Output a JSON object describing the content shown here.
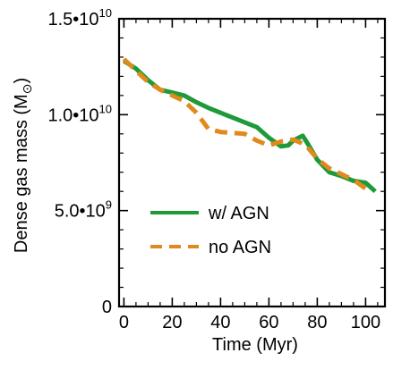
{
  "chart_data": {
    "type": "line",
    "xlabel": "Time (Myr)",
    "ylabel": "Dense gas mass (M",
    "ylabel_sub_symbol": "⊙",
    "ylabel_close": ")",
    "xlim": [
      -2,
      108
    ],
    "ylim": [
      0,
      15000000000
    ],
    "x_ticks": [
      0,
      20,
      40,
      60,
      80,
      100
    ],
    "x_tick_labels": [
      "0",
      "20",
      "40",
      "60",
      "80",
      "100"
    ],
    "y_ticks": [
      0,
      5000000000,
      10000000000,
      15000000000
    ],
    "y_tick_labels": [
      {
        "mantissa": "0",
        "exponent": ""
      },
      {
        "mantissa": "5.0•10",
        "exponent": "9"
      },
      {
        "mantissa": "1.0•10",
        "exponent": "10"
      },
      {
        "mantissa": "1.5•10",
        "exponent": "10"
      }
    ],
    "grid": false,
    "legend_position": "center-left",
    "series": [
      {
        "name": "w/ AGN",
        "color": "#1f9a38",
        "style": "solid",
        "x": [
          0,
          5,
          10,
          15,
          20,
          25,
          30,
          35,
          40,
          45,
          50,
          55,
          60,
          65,
          68,
          70,
          74,
          76,
          80,
          85,
          90,
          95,
          100,
          104
        ],
        "y": [
          12800000000,
          12400000000,
          11800000000,
          11300000000,
          11150000000,
          11000000000,
          10650000000,
          10350000000,
          10100000000,
          9850000000,
          9600000000,
          9350000000,
          8800000000,
          8350000000,
          8400000000,
          8650000000,
          8900000000,
          8500000000,
          7650000000,
          7000000000,
          6800000000,
          6550000000,
          6450000000,
          6000000000
        ]
      },
      {
        "name": "no AGN",
        "color": "#e08a1e",
        "style": "dashed",
        "x": [
          0,
          5,
          10,
          15,
          20,
          25,
          30,
          35,
          40,
          45,
          50,
          55,
          60,
          65,
          70,
          73,
          76,
          80,
          85,
          90,
          95,
          100
        ],
        "y": [
          12900000000,
          12300000000,
          11700000000,
          11300000000,
          11000000000,
          10700000000,
          10100000000,
          9250000000,
          9100000000,
          9050000000,
          9000000000,
          8650000000,
          8400000000,
          8600000000,
          8700000000,
          8550000000,
          8300000000,
          7700000000,
          7200000000,
          6900000000,
          6600000000,
          6150000000
        ]
      }
    ]
  }
}
